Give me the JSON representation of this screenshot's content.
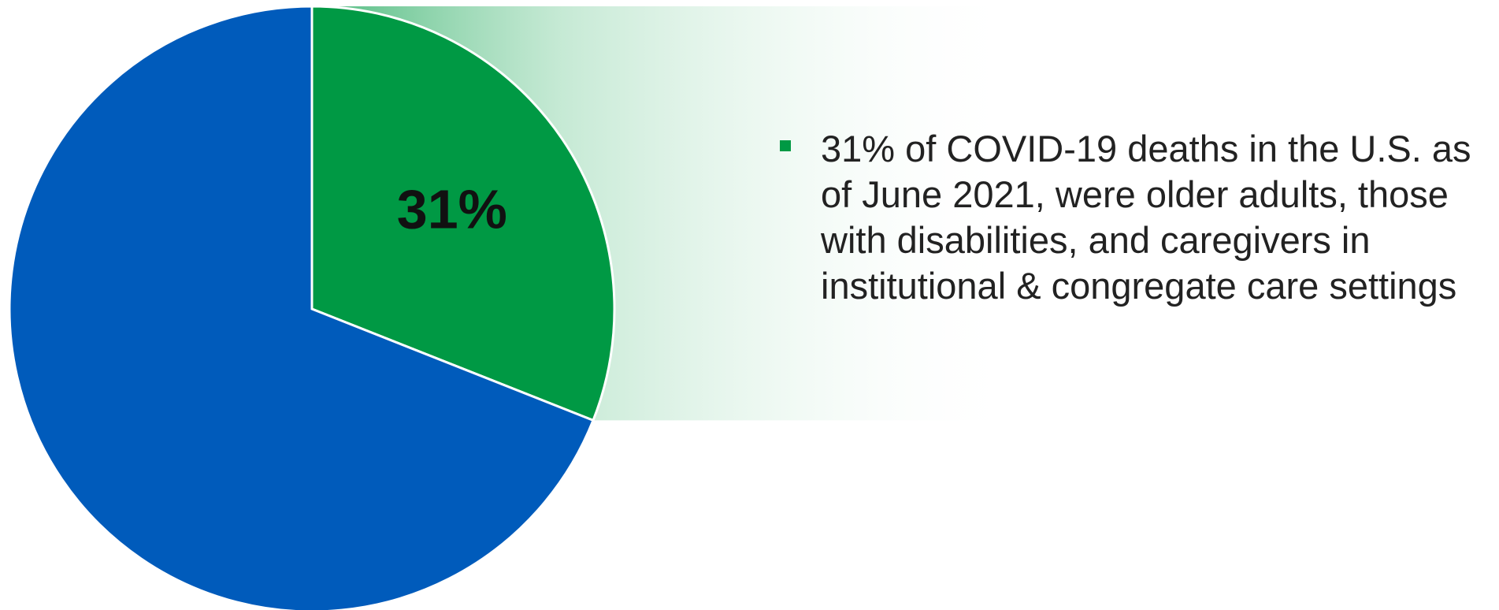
{
  "chart_data": {
    "type": "pie",
    "slices": [
      {
        "label": "31%",
        "value": 31,
        "color": "#009944",
        "highlight": true
      },
      {
        "label": "",
        "value": 69,
        "color": "#005BBB",
        "highlight": false
      }
    ],
    "start_angle_deg": 0,
    "direction": "clockwise"
  },
  "annotation": {
    "bullet_color": "#009944",
    "text": "31% of COVID-19 deaths in the U.S. as\nof June 2021, were older adults, those\nwith disabilities, and caregivers in\ninstitutional & congregate care settings"
  }
}
